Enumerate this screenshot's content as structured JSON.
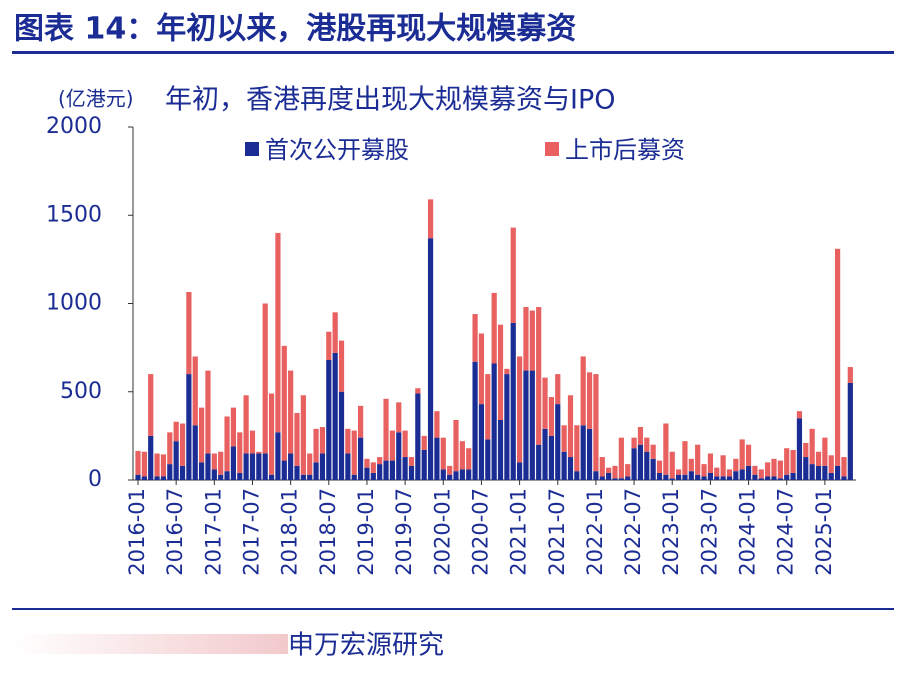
{
  "header": {
    "title": "图表 14：年初以来，港股再现大规模募资"
  },
  "chart_data": {
    "type": "stacked_bar",
    "title": "年初，香港再度出现大规模募资与IPO",
    "y_label": "(亿港元)",
    "categories": [
      "2016-01",
      null,
      null,
      null,
      null,
      null,
      "2016-07",
      null,
      null,
      null,
      null,
      null,
      "2017-01",
      null,
      null,
      null,
      null,
      null,
      "2017-07",
      null,
      null,
      null,
      null,
      null,
      "2018-01",
      null,
      null,
      null,
      null,
      null,
      "2018-07",
      null,
      null,
      null,
      null,
      null,
      "2019-01",
      null,
      null,
      null,
      null,
      null,
      "2019-07",
      null,
      null,
      null,
      null,
      null,
      "2020-01",
      null,
      null,
      null,
      null,
      null,
      "2020-07",
      null,
      null,
      null,
      null,
      null,
      "2021-01",
      null,
      null,
      null,
      null,
      null,
      "2021-07",
      null,
      null,
      null,
      null,
      null,
      "2022-01",
      null,
      null,
      null,
      null,
      null,
      "2022-07",
      null,
      null,
      null,
      null,
      null,
      "2023-01",
      null,
      null,
      null,
      null,
      null,
      "2023-07",
      null,
      null,
      null,
      null,
      null,
      "2024-01",
      null,
      null,
      null,
      null,
      null,
      "2024-07",
      null,
      null,
      null,
      null,
      null,
      "2025-01",
      null,
      null,
      null,
      null
    ],
    "series": [
      {
        "name": "首次公开募股",
        "color": "#1b2d94",
        "values": [
          30,
          20,
          250,
          20,
          20,
          90,
          220,
          80,
          600,
          310,
          100,
          150,
          60,
          30,
          50,
          190,
          40,
          150,
          150,
          150,
          150,
          30,
          270,
          110,
          150,
          80,
          30,
          30,
          100,
          150,
          680,
          720,
          500,
          150,
          30,
          240,
          70,
          40,
          90,
          110,
          110,
          270,
          130,
          80,
          490,
          170,
          1370,
          240,
          60,
          30,
          50,
          60,
          60,
          670,
          430,
          230,
          660,
          340,
          600,
          890,
          100,
          620,
          620,
          200,
          290,
          250,
          430,
          160,
          130,
          50,
          310,
          290,
          50,
          20,
          40,
          10,
          10,
          20,
          180,
          200,
          160,
          120,
          40,
          30,
          10,
          30,
          30,
          50,
          30,
          20,
          40,
          20,
          20,
          20,
          50,
          60,
          80,
          30,
          10,
          20,
          20,
          10,
          30,
          40,
          350,
          130,
          90,
          80,
          80,
          40,
          80,
          20,
          550
        ]
      },
      {
        "name": "上市后募资",
        "color": "#e8605f",
        "values": [
          135,
          140,
          350,
          130,
          125,
          180,
          110,
          240,
          465,
          390,
          310,
          470,
          90,
          130,
          310,
          220,
          230,
          330,
          130,
          10,
          850,
          460,
          1130,
          650,
          470,
          300,
          450,
          120,
          190,
          150,
          160,
          230,
          290,
          140,
          250,
          180,
          50,
          60,
          40,
          350,
          170,
          170,
          150,
          50,
          30,
          80,
          220,
          150,
          180,
          50,
          290,
          160,
          120,
          270,
          400,
          370,
          400,
          540,
          30,
          540,
          600,
          360,
          340,
          780,
          290,
          220,
          170,
          150,
          350,
          260,
          390,
          320,
          550,
          110,
          30,
          70,
          230,
          70,
          60,
          100,
          80,
          80,
          70,
          290,
          150,
          30,
          190,
          70,
          170,
          70,
          110,
          50,
          120,
          40,
          70,
          170,
          120,
          50,
          50,
          80,
          100,
          100,
          150,
          130,
          40,
          80,
          200,
          80,
          160,
          100,
          1230,
          110,
          90
        ]
      }
    ],
    "ylim": [
      0,
      2000
    ],
    "yticks": [
      0,
      500,
      1000,
      1500,
      2000
    ]
  },
  "footer": {
    "source": "申万宏源研究"
  }
}
